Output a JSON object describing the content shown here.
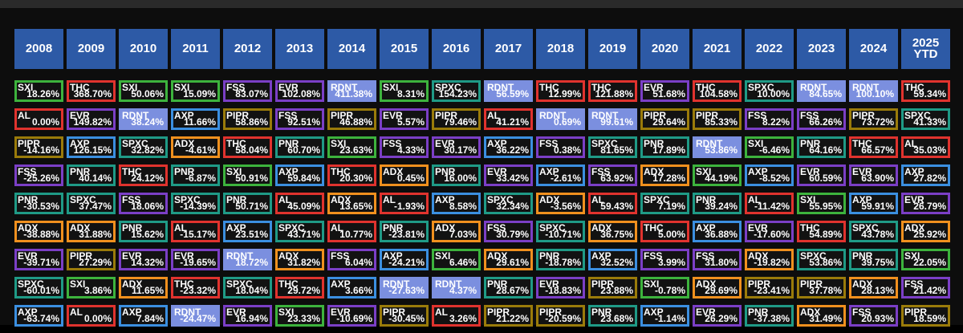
{
  "colors": {
    "SXI": "#3db33d",
    "THC": "#e0332e",
    "AL": "#e0332e",
    "EVR": "#7b3fc6",
    "RDNT": "#7b8fdf",
    "AXP": "#3b8fe0",
    "FSS": "#7b3fc6",
    "PIPR": "#9a7b0a",
    "PNR": "#1f9a86",
    "SPXC": "#1f9a86",
    "ADX": "#f0901e"
  },
  "years": [
    "2008",
    "2009",
    "2010",
    "2011",
    "2012",
    "2013",
    "2014",
    "2015",
    "2016",
    "2017",
    "2018",
    "2019",
    "2020",
    "2021",
    "2022",
    "2023",
    "2024",
    "2025\nYTD"
  ],
  "rows": [
    [
      [
        "SXI",
        "18.26%"
      ],
      [
        "THC",
        "368.70%"
      ],
      [
        "SXI",
        "50.06%"
      ],
      [
        "SXI",
        "15.09%"
      ],
      [
        "FSS",
        "83.07%"
      ],
      [
        "EVR",
        "102.08%"
      ],
      [
        "RDNT",
        "411.38%"
      ],
      [
        "SXI",
        "8.31%"
      ],
      [
        "SPXC",
        "154.23%"
      ],
      [
        "RDNT",
        "56.59%"
      ],
      [
        "THC",
        "12.99%"
      ],
      [
        "THC",
        "121.88%"
      ],
      [
        "EVR",
        "51.68%"
      ],
      [
        "THC",
        "104.58%"
      ],
      [
        "SPXC",
        "10.00%"
      ],
      [
        "RDNT",
        "84.65%"
      ],
      [
        "RDNT",
        "100.10%"
      ],
      [
        "THC",
        "59.34%"
      ]
    ],
    [
      [
        "AL",
        "0.00%"
      ],
      [
        "EVR",
        "149.82%"
      ],
      [
        "RDNT",
        "38.24%"
      ],
      [
        "AXP",
        "11.66%"
      ],
      [
        "PIPR",
        "58.86%"
      ],
      [
        "FSS",
        "92.51%"
      ],
      [
        "PIPR",
        "46.88%"
      ],
      [
        "EVR",
        "5.57%"
      ],
      [
        "PIPR",
        "79.46%"
      ],
      [
        "AL",
        "41.21%"
      ],
      [
        "RDNT",
        "0.69%"
      ],
      [
        "RDNT",
        "99.61%"
      ],
      [
        "PIPR",
        "29.64%"
      ],
      [
        "PIPR",
        "85.33%"
      ],
      [
        "FSS",
        "8.22%"
      ],
      [
        "FSS",
        "66.26%"
      ],
      [
        "PIPR",
        "73.72%"
      ],
      [
        "SPXC",
        "41.33%"
      ]
    ],
    [
      [
        "PIPR",
        "-14.16%"
      ],
      [
        "AXP",
        "126.15%"
      ],
      [
        "SPXC",
        "32.82%"
      ],
      [
        "ADX",
        "-4.61%"
      ],
      [
        "THC",
        "58.04%"
      ],
      [
        "PNR",
        "60.70%"
      ],
      [
        "SXI",
        "23.63%"
      ],
      [
        "FSS",
        "4.33%"
      ],
      [
        "EVR",
        "30.17%"
      ],
      [
        "AXP",
        "36.22%"
      ],
      [
        "FSS",
        "0.38%"
      ],
      [
        "SPXC",
        "81.65%"
      ],
      [
        "PNR",
        "17.89%"
      ],
      [
        "RDNT",
        "53.86%"
      ],
      [
        "SXI",
        "-6.46%"
      ],
      [
        "PNR",
        "64.16%"
      ],
      [
        "THC",
        "66.57%"
      ],
      [
        "AL",
        "35.03%"
      ]
    ],
    [
      [
        "FSS",
        "-25.26%"
      ],
      [
        "PNR",
        "40.14%"
      ],
      [
        "THC",
        "24.12%"
      ],
      [
        "PNR",
        "-6.87%"
      ],
      [
        "SXI",
        "50.91%"
      ],
      [
        "AXP",
        "59.84%"
      ],
      [
        "THC",
        "20.30%"
      ],
      [
        "ADX",
        "0.45%"
      ],
      [
        "PNR",
        "16.00%"
      ],
      [
        "EVR",
        "33.42%"
      ],
      [
        "AXP",
        "-2.61%"
      ],
      [
        "FSS",
        "63.92%"
      ],
      [
        "ADX",
        "17.28%"
      ],
      [
        "SXI",
        "44.19%"
      ],
      [
        "AXP",
        "-8.52%"
      ],
      [
        "EVR",
        "60.59%"
      ],
      [
        "EVR",
        "63.90%"
      ],
      [
        "AXP",
        "27.82%"
      ]
    ],
    [
      [
        "PNR",
        "-30.53%"
      ],
      [
        "SPXC",
        "37.47%"
      ],
      [
        "FSS",
        "18.06%"
      ],
      [
        "SPXC",
        "-14.39%"
      ],
      [
        "PNR",
        "50.71%"
      ],
      [
        "AL",
        "45.09%"
      ],
      [
        "ADX",
        "13.65%"
      ],
      [
        "AL",
        "-1.93%"
      ],
      [
        "AXP",
        "8.58%"
      ],
      [
        "SPXC",
        "32.34%"
      ],
      [
        "ADX",
        "-3.56%"
      ],
      [
        "AL",
        "59.43%"
      ],
      [
        "SPXC",
        "7.19%"
      ],
      [
        "PNR",
        "39.24%"
      ],
      [
        "AL",
        "-11.42%"
      ],
      [
        "SXI",
        "55.95%"
      ],
      [
        "AXP",
        "59.91%"
      ],
      [
        "EVR",
        "26.79%"
      ]
    ],
    [
      [
        "ADX",
        "-38.88%"
      ],
      [
        "ADX",
        "31.88%"
      ],
      [
        "PNR",
        "15.62%"
      ],
      [
        "AL",
        "-15.17%"
      ],
      [
        "AXP",
        "23.51%"
      ],
      [
        "SPXC",
        "43.71%"
      ],
      [
        "AL",
        "10.77%"
      ],
      [
        "PNR",
        "-23.81%"
      ],
      [
        "ADX",
        "7.03%"
      ],
      [
        "FSS",
        "30.79%"
      ],
      [
        "SPXC",
        "-10.71%"
      ],
      [
        "ADX",
        "36.75%"
      ],
      [
        "THC",
        "5.00%"
      ],
      [
        "AXP",
        "36.88%"
      ],
      [
        "EVR",
        "-17.60%"
      ],
      [
        "THC",
        "54.89%"
      ],
      [
        "SPXC",
        "43.78%"
      ],
      [
        "ADX",
        "25.92%"
      ]
    ],
    [
      [
        "EVR",
        "-39.71%"
      ],
      [
        "PIPR",
        "27.29%"
      ],
      [
        "EVR",
        "14.32%"
      ],
      [
        "EVR",
        "-19.65%"
      ],
      [
        "RDNT",
        "18.72%"
      ],
      [
        "ADX",
        "31.82%"
      ],
      [
        "FSS",
        "6.04%"
      ],
      [
        "AXP",
        "-24.21%"
      ],
      [
        "SXI",
        "6.46%"
      ],
      [
        "ADX",
        "29.61%"
      ],
      [
        "PNR",
        "-18.78%"
      ],
      [
        "AXP",
        "32.52%"
      ],
      [
        "FSS",
        "3.99%"
      ],
      [
        "FSS",
        "31.80%"
      ],
      [
        "ADX",
        "-19.82%"
      ],
      [
        "SPXC",
        "53.86%"
      ],
      [
        "PNR",
        "39.75%"
      ],
      [
        "SXI",
        "22.05%"
      ]
    ],
    [
      [
        "SPXC",
        "-60.01%"
      ],
      [
        "SXI",
        "3.86%"
      ],
      [
        "ADX",
        "11.65%"
      ],
      [
        "THC",
        "-23.32%"
      ],
      [
        "SPXC",
        "18.04%"
      ],
      [
        "THC",
        "29.72%"
      ],
      [
        "AXP",
        "3.66%"
      ],
      [
        "RDNT",
        "-27.63%"
      ],
      [
        "RDNT",
        "4.37%"
      ],
      [
        "PNR",
        "28.67%"
      ],
      [
        "EVR",
        "-18.83%"
      ],
      [
        "PIPR",
        "23.88%"
      ],
      [
        "SXI",
        "-0.78%"
      ],
      [
        "ADX",
        "29.69%"
      ],
      [
        "PIPR",
        "-23.41%"
      ],
      [
        "PIPR",
        "37.78%"
      ],
      [
        "ADX",
        "28.13%"
      ],
      [
        "FSS",
        "21.42%"
      ]
    ],
    [
      [
        "AXP",
        "-63.74%"
      ],
      [
        "AL",
        "0.00%"
      ],
      [
        "AXP",
        "7.84%"
      ],
      [
        "RDNT",
        "-24.47%"
      ],
      [
        "EVR",
        "16.94%"
      ],
      [
        "SXI",
        "23.33%"
      ],
      [
        "EVR",
        "-10.69%"
      ],
      [
        "PIPR",
        "-30.45%"
      ],
      [
        "AL",
        "3.26%"
      ],
      [
        "PIPR",
        "21.22%"
      ],
      [
        "PIPR",
        "-20.59%"
      ],
      [
        "PNR",
        "23.68%"
      ],
      [
        "AXP",
        "-1.14%"
      ],
      [
        "EVR",
        "26.29%"
      ],
      [
        "PNR",
        "-37.38%"
      ],
      [
        "ADX",
        "31.49%"
      ],
      [
        "FSS",
        "20.93%"
      ],
      [
        "PIPR",
        "18.59%"
      ]
    ]
  ]
}
